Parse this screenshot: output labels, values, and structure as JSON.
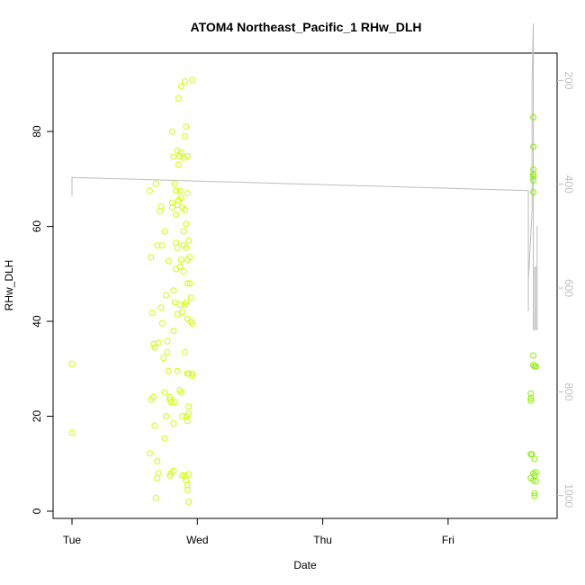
{
  "chart_data": {
    "type": "scatter",
    "title": "ATOM4 Northeast_Pacific_1 RHw_DLH",
    "xlabel": "Date",
    "ylabel": "RHw_DLH",
    "x_ticks": [
      "Tue",
      "Wed",
      "Thu",
      "Fri"
    ],
    "xlim_days": [
      0,
      3.9
    ],
    "ylim": [
      0,
      95
    ],
    "y_ticks": [
      0,
      20,
      40,
      60,
      80
    ],
    "right_axis": {
      "ticks": [
        200,
        400,
        600,
        800,
        1000
      ],
      "range_top_to_bottom": [
        175,
        1030
      ],
      "color": "#c0c0c0",
      "inverted": true
    },
    "grid": false,
    "series": [
      {
        "type": "scatter",
        "color": "#ccff00",
        "points": [
          [
            0.0,
            31
          ],
          [
            0.0,
            16.5
          ],
          [
            0.62,
            67.5
          ],
          [
            0.63,
            53.5
          ],
          [
            0.64,
            41.8
          ],
          [
            0.65,
            35.2
          ],
          [
            0.66,
            34.5
          ],
          [
            0.67,
            69.0
          ],
          [
            0.68,
            56.0
          ],
          [
            0.69,
            35.5
          ],
          [
            0.62,
            12.2
          ],
          [
            0.63,
            23.5
          ],
          [
            0.65,
            24.0
          ],
          [
            0.66,
            18.0
          ],
          [
            0.68,
            10.5
          ],
          [
            0.68,
            7.0
          ],
          [
            0.69,
            8.0
          ],
          [
            0.67,
            2.8
          ],
          [
            0.7,
            63.2
          ],
          [
            0.71,
            64.2
          ],
          [
            0.71,
            42.9
          ],
          [
            0.72,
            56.0
          ],
          [
            0.72,
            39.6
          ],
          [
            0.73,
            32.3
          ],
          [
            0.74,
            59.0
          ],
          [
            0.74,
            25.0
          ],
          [
            0.74,
            15.3
          ],
          [
            0.75,
            45.5
          ],
          [
            0.75,
            20.0
          ],
          [
            0.76,
            35.8
          ],
          [
            0.76,
            33.5
          ],
          [
            0.77,
            52.7
          ],
          [
            0.77,
            29.5
          ],
          [
            0.78,
            24.0
          ],
          [
            0.78,
            23.5
          ],
          [
            0.79,
            23.0
          ],
          [
            0.79,
            8.0
          ],
          [
            0.78,
            7.5
          ],
          [
            0.8,
            80.0
          ],
          [
            0.8,
            64.0
          ],
          [
            0.8,
            65.0
          ],
          [
            0.81,
            74.7
          ],
          [
            0.81,
            46.5
          ],
          [
            0.81,
            38.0
          ],
          [
            0.81,
            18.5
          ],
          [
            0.81,
            8.5
          ],
          [
            0.82,
            69.0
          ],
          [
            0.82,
            44.0
          ],
          [
            0.82,
            23.0
          ],
          [
            0.83,
            67.5
          ],
          [
            0.83,
            62.5
          ],
          [
            0.83,
            56.5
          ],
          [
            0.83,
            51.0
          ],
          [
            0.84,
            76.0
          ],
          [
            0.84,
            64.5
          ],
          [
            0.84,
            55.5
          ],
          [
            0.84,
            41.5
          ],
          [
            0.84,
            29.5
          ],
          [
            0.85,
            87.0
          ],
          [
            0.85,
            73.0
          ],
          [
            0.85,
            65.5
          ],
          [
            0.86,
            74.8
          ],
          [
            0.86,
            67.5
          ],
          [
            0.86,
            51.5
          ],
          [
            0.86,
            43.5
          ],
          [
            0.86,
            25.5
          ],
          [
            0.87,
            89.5
          ],
          [
            0.87,
            75.5
          ],
          [
            0.87,
            66.0
          ],
          [
            0.87,
            53.0
          ],
          [
            0.87,
            25.0
          ],
          [
            0.88,
            64.0
          ],
          [
            0.88,
            42.0
          ],
          [
            0.88,
            20.0
          ],
          [
            0.88,
            7.5
          ],
          [
            0.89,
            74.5
          ],
          [
            0.89,
            59.0
          ],
          [
            0.89,
            56.0
          ],
          [
            0.89,
            50.5
          ],
          [
            0.9,
            90.5
          ],
          [
            0.9,
            79.0
          ],
          [
            0.9,
            63.5
          ],
          [
            0.9,
            43.5
          ],
          [
            0.9,
            33.5
          ],
          [
            0.9,
            7.5
          ],
          [
            0.91,
            81.0
          ],
          [
            0.91,
            60.5
          ],
          [
            0.91,
            55.5
          ],
          [
            0.91,
            44.0
          ],
          [
            0.91,
            20.0
          ],
          [
            0.91,
            6.5
          ],
          [
            0.92,
            74.8
          ],
          [
            0.92,
            67.0
          ],
          [
            0.92,
            53.0
          ],
          [
            0.92,
            48.0
          ],
          [
            0.92,
            40.5
          ],
          [
            0.92,
            29.0
          ],
          [
            0.92,
            19.0
          ],
          [
            0.92,
            5.5
          ],
          [
            0.92,
            4.5
          ],
          [
            0.93,
            57.0
          ],
          [
            0.93,
            29.0
          ],
          [
            0.93,
            22.0
          ],
          [
            0.93,
            20.5
          ],
          [
            0.93,
            7.8
          ],
          [
            0.93,
            2.0
          ],
          [
            0.94,
            53.5
          ],
          [
            0.94,
            48.0
          ],
          [
            0.95,
            45.0
          ],
          [
            0.95,
            40.0
          ],
          [
            0.96,
            90.8
          ],
          [
            0.96,
            39.5
          ],
          [
            0.96,
            29.0
          ],
          [
            0.96,
            28.5
          ]
        ]
      },
      {
        "type": "scatter",
        "color": "#88ee00",
        "points": [
          [
            3.66,
            24.8
          ],
          [
            3.66,
            23.8
          ],
          [
            3.66,
            23.3
          ],
          [
            3.66,
            12.0
          ],
          [
            3.66,
            7.0
          ],
          [
            3.67,
            12.0
          ],
          [
            3.68,
            83.0
          ],
          [
            3.68,
            76.8
          ],
          [
            3.68,
            72.0
          ],
          [
            3.68,
            71.0
          ],
          [
            3.68,
            70.5
          ],
          [
            3.68,
            69.7
          ],
          [
            3.68,
            67.2
          ],
          [
            3.68,
            32.8
          ],
          [
            3.68,
            30.8
          ],
          [
            3.68,
            8.0
          ],
          [
            3.68,
            6.5
          ],
          [
            3.69,
            30.5
          ],
          [
            3.69,
            11.0
          ],
          [
            3.69,
            7.5
          ],
          [
            3.7,
            30.5
          ],
          [
            3.7,
            8.2
          ],
          [
            3.7,
            6.3
          ],
          [
            3.69,
            3.8
          ],
          [
            3.69,
            3.2
          ]
        ]
      }
    ],
    "line_series": {
      "name": "",
      "axis": "right",
      "color": "#bdbdbd",
      "points": [
        [
          0.0,
          423
        ],
        [
          0.0,
          387
        ],
        [
          3.64,
          412
        ],
        [
          3.64,
          560
        ],
        [
          3.64,
          645
        ],
        [
          3.64,
          585
        ],
        [
          3.67,
          450
        ],
        [
          3.67,
          320
        ],
        [
          3.67,
          200
        ],
        [
          3.68,
          90
        ],
        [
          3.68,
          500
        ],
        [
          3.68,
          680
        ],
        [
          3.69,
          680
        ],
        [
          3.69,
          560
        ],
        [
          3.7,
          560
        ],
        [
          3.7,
          680
        ],
        [
          3.71,
          680
        ],
        [
          3.71,
          580
        ],
        [
          3.71,
          480
        ]
      ]
    }
  }
}
